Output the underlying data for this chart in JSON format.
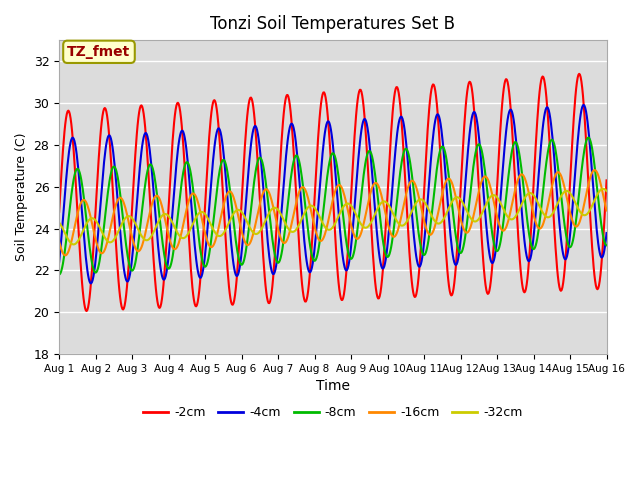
{
  "title": "Tonzi Soil Temperatures Set B",
  "xlabel": "Time",
  "ylabel": "Soil Temperature (C)",
  "ylim": [
    18,
    33
  ],
  "yticks": [
    18,
    20,
    22,
    24,
    26,
    28,
    30,
    32
  ],
  "annotation_text": "TZ_fmet",
  "annotation_box_color": "#ffffcc",
  "annotation_text_color": "#990000",
  "annotation_border_color": "#999900",
  "background_color": "#e8e8e8",
  "plot_bg_color": "#dcdcdc",
  "series": {
    "-2cm": {
      "color": "#ff0000",
      "amplitude": 4.8,
      "mean": 24.8,
      "phase_shift": 0.0,
      "lag_days": 0.0,
      "amp_growth": 0.08
    },
    "-4cm": {
      "color": "#0000dd",
      "amplitude": 3.5,
      "mean": 24.8,
      "phase_shift": 0.0,
      "lag_days": 0.12,
      "amp_growth": 0.05
    },
    "-8cm": {
      "color": "#00bb00",
      "amplitude": 2.5,
      "mean": 24.3,
      "phase_shift": 0.0,
      "lag_days": 0.25,
      "amp_growth": 0.04
    },
    "-16cm": {
      "color": "#ff8800",
      "amplitude": 1.3,
      "mean": 24.0,
      "phase_shift": 0.0,
      "lag_days": 0.42,
      "amp_growth": 0.02
    },
    "-32cm": {
      "color": "#cccc00",
      "amplitude": 0.6,
      "mean": 23.8,
      "phase_shift": 0.0,
      "lag_days": 0.65,
      "amp_growth": 0.01
    }
  },
  "legend_labels": [
    "-2cm",
    "-4cm",
    "-8cm",
    "-16cm",
    "-32cm"
  ],
  "legend_colors": [
    "#ff0000",
    "#0000dd",
    "#00bb00",
    "#ff8800",
    "#cccc00"
  ],
  "mean_rise": 1.5,
  "num_days": 15,
  "samples_per_day": 48
}
